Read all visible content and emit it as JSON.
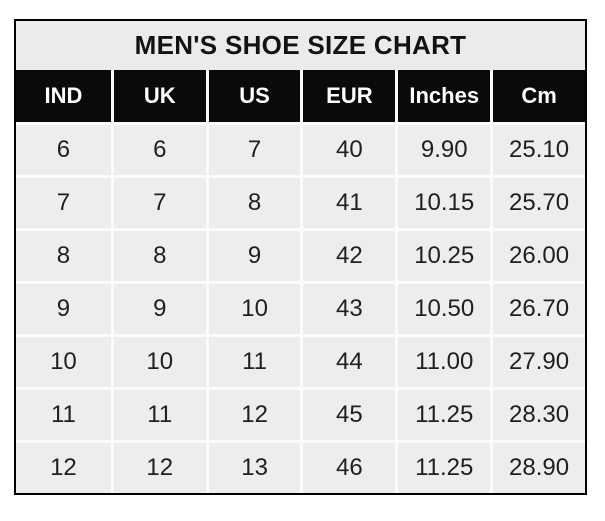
{
  "chart_data": {
    "type": "table",
    "title": "MEN'S SHOE SIZE CHART",
    "columns": [
      "IND",
      "UK",
      "US",
      "EUR",
      "Inches",
      "Cm"
    ],
    "rows": [
      [
        "6",
        "6",
        "7",
        "40",
        "9.90",
        "25.10"
      ],
      [
        "7",
        "7",
        "8",
        "41",
        "10.15",
        "25.70"
      ],
      [
        "8",
        "8",
        "9",
        "42",
        "10.25",
        "26.00"
      ],
      [
        "9",
        "9",
        "10",
        "43",
        "10.50",
        "26.70"
      ],
      [
        "10",
        "10",
        "11",
        "44",
        "11.00",
        "27.90"
      ],
      [
        "11",
        "11",
        "12",
        "45",
        "11.25",
        "28.30"
      ],
      [
        "12",
        "12",
        "13",
        "46",
        "11.25",
        "28.90"
      ]
    ]
  },
  "colors": {
    "outer_border": "#000000",
    "title_background": "#edeaea",
    "header_background": "#0a0a08",
    "header_text": "#ffffff",
    "row_background": "#efedec",
    "cell_divider": "#fcfbfa",
    "body_text": "#1f1f1f",
    "page_background": "#ffffff"
  }
}
